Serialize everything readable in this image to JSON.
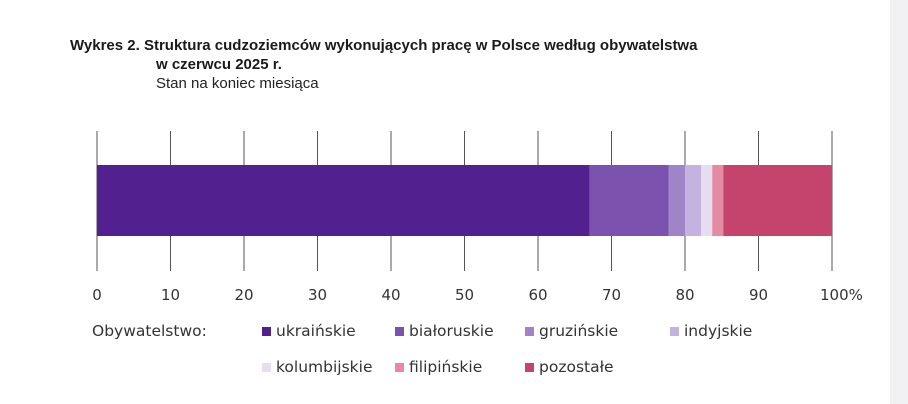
{
  "chart_data": {
    "type": "bar",
    "orientation": "horizontal-stacked-100",
    "title_prefix": "Wykres 2.",
    "title": "Struktura cudzoziemców wykonujących pracę w Polsce według obywatelstwa",
    "title_cont": "w czerwcu 2025 r.",
    "subtitle": "Stan na koniec miesiąca",
    "xlim": [
      0,
      100
    ],
    "xticks": [
      "0",
      "10",
      "20",
      "30",
      "40",
      "50",
      "60",
      "70",
      "80",
      "90",
      "100%"
    ],
    "grid": true,
    "legend_title": "Obywatelstwo:",
    "legend_position": "bottom",
    "series": [
      {
        "name": "ukraińskie",
        "value": 67.0,
        "color": "#52218f"
      },
      {
        "name": "białoruskie",
        "value": 10.8,
        "color": "#7b52ad"
      },
      {
        "name": "gruzińskie",
        "value": 2.2,
        "color": "#9f84c7"
      },
      {
        "name": "indyjskie",
        "value": 2.2,
        "color": "#c4b3de"
      },
      {
        "name": "kolumbijskie",
        "value": 1.5,
        "color": "#e6def0"
      },
      {
        "name": "filipińskie",
        "value": 1.5,
        "color": "#e58aa3"
      },
      {
        "name": "pozostałe",
        "value": 14.8,
        "color": "#c4446e"
      }
    ]
  }
}
